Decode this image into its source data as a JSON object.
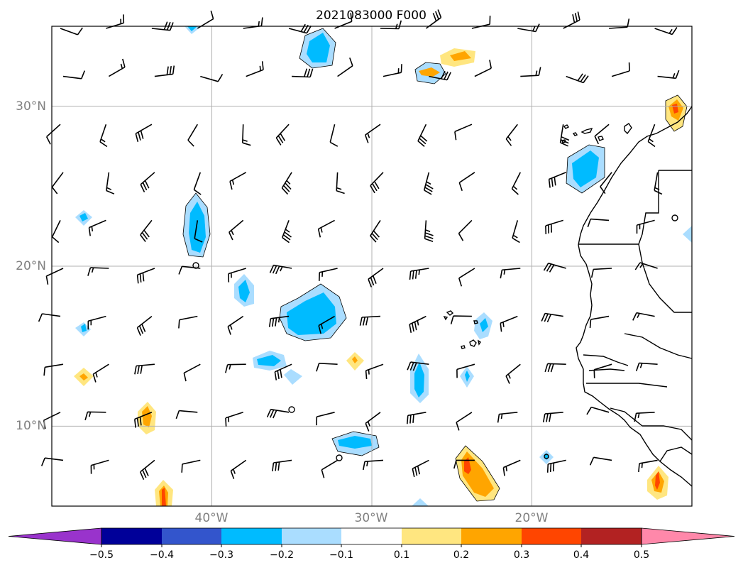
{
  "title": "2021083000 F000",
  "map": {
    "lon_range": [
      -50,
      -10
    ],
    "lat_range": [
      5,
      35
    ],
    "lat_ticks": [
      {
        "value": 30,
        "label": "30°N"
      },
      {
        "value": 20,
        "label": "20°N"
      },
      {
        "value": 10,
        "label": "10°N"
      }
    ],
    "lon_ticks": [
      {
        "value": -40,
        "label": "40°W"
      },
      {
        "value": -30,
        "label": "30°W"
      },
      {
        "value": -20,
        "label": "20°W"
      }
    ],
    "grid": true
  },
  "colorbar": {
    "labels": [
      "−0.5",
      "−0.4",
      "−0.3",
      "−0.2",
      "−0.1",
      "0.1",
      "0.2",
      "0.3",
      "0.4",
      "0.5"
    ],
    "under_color": "#9933cc",
    "over_color": "#ff88aa",
    "colors": [
      "#000099",
      "#3355cc",
      "#00bbff",
      "#aaddff",
      "#ffffff",
      "#ffe680",
      "#ffa500",
      "#ff4500",
      "#b22222"
    ]
  },
  "colors": {
    "blue_light": "#aaddff",
    "blue": "#00bbff",
    "yellow": "#ffe680",
    "orange": "#ffa500",
    "red": "#ff4500"
  }
}
